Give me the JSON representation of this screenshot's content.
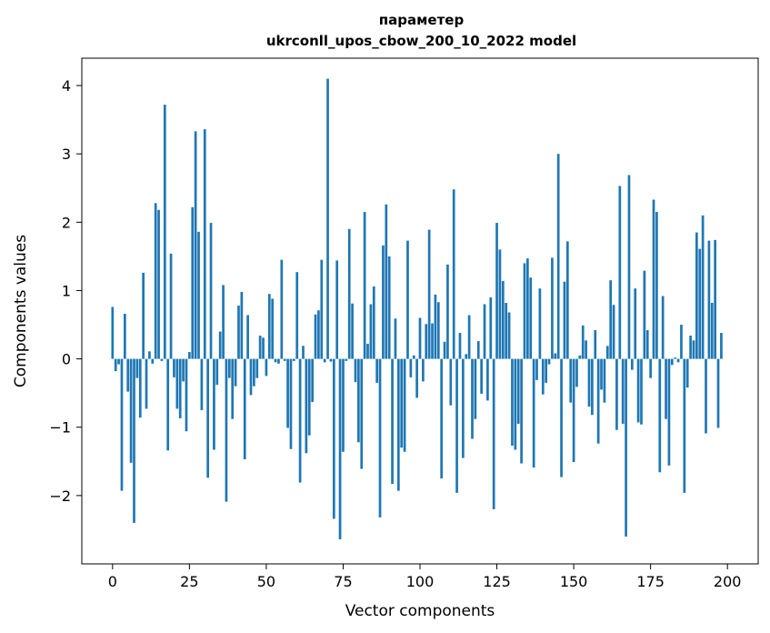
{
  "chart_data": {
    "type": "bar",
    "title": "параметер",
    "subtitle": "ukrconll_upos_cbow_200_10_2022 model",
    "xlabel": "Vector components",
    "ylabel": "Components values",
    "xlim": [
      -10,
      210
    ],
    "ylim": [
      -3.0,
      4.4
    ],
    "xticks": [
      0,
      25,
      50,
      75,
      100,
      125,
      150,
      175,
      200
    ],
    "yticks": [
      -2,
      -1,
      0,
      1,
      2,
      3,
      4
    ],
    "bar_color": "#1f77b4",
    "grid": false,
    "values": [
      0.76,
      -0.18,
      -0.08,
      -1.93,
      0.66,
      -0.48,
      -1.52,
      -2.4,
      -0.28,
      -0.86,
      1.26,
      -0.73,
      0.11,
      -0.07,
      2.28,
      2.18,
      -0.03,
      3.72,
      -1.34,
      1.54,
      -0.27,
      -0.73,
      -0.87,
      -0.33,
      -1.06,
      0.1,
      2.22,
      3.33,
      1.86,
      -0.75,
      3.36,
      -1.74,
      1.99,
      -1.33,
      -0.38,
      0.4,
      1.08,
      -2.09,
      -0.28,
      -0.88,
      -0.4,
      0.78,
      0.98,
      -1.47,
      0.64,
      -0.53,
      -0.4,
      -0.28,
      0.34,
      0.31,
      -0.25,
      0.95,
      0.88,
      -0.05,
      -0.07,
      1.45,
      -0.03,
      -1.01,
      -1.32,
      -0.03,
      1.27,
      -1.81,
      0.19,
      -1.38,
      -1.12,
      -0.63,
      0.65,
      0.71,
      1.45,
      -0.05,
      4.1,
      -0.04,
      -2.34,
      1.44,
      -2.64,
      -1.36,
      -0.03,
      1.9,
      0.81,
      -0.34,
      -1.22,
      -1.61,
      2.15,
      0.22,
      0.8,
      1.06,
      -0.35,
      -2.32,
      1.66,
      2.26,
      1.5,
      -1.83,
      0.59,
      -1.93,
      -1.3,
      -1.36,
      1.73,
      -0.27,
      0.05,
      -0.57,
      0.6,
      -0.33,
      0.51,
      1.89,
      0.52,
      0.94,
      0.83,
      -1.75,
      0.25,
      1.38,
      -0.68,
      2.48,
      -1.96,
      0.38,
      -1.45,
      0.07,
      0.64,
      -1.17,
      -0.88,
      0.26,
      -0.51,
      0.8,
      -0.61,
      0.9,
      -2.2,
      1.99,
      1.6,
      1.14,
      0.82,
      0.68,
      -1.27,
      -1.33,
      -0.95,
      -1.53,
      1.4,
      1.47,
      1.19,
      -1.59,
      -0.31,
      1.03,
      -0.52,
      -0.35,
      -0.08,
      1.48,
      0.08,
      3.0,
      -1.73,
      1.13,
      1.72,
      -0.64,
      -1.51,
      -0.41,
      0.05,
      0.49,
      0.27,
      -0.7,
      -0.82,
      0.42,
      -1.24,
      -0.45,
      -0.64,
      0.19,
      1.15,
      0.79,
      -1.04,
      2.53,
      -0.95,
      -2.6,
      2.69,
      -0.16,
      1.03,
      -0.93,
      -0.96,
      1.29,
      0.42,
      -0.28,
      2.33,
      2.15,
      -1.66,
      0.92,
      -0.88,
      -1.56,
      -0.09,
      0.02,
      -0.05,
      0.5,
      -1.96,
      -0.42,
      0.34,
      0.27,
      1.85,
      1.61,
      2.1,
      -1.09,
      1.73,
      0.82,
      1.74,
      -1.01,
      0.38
    ]
  }
}
